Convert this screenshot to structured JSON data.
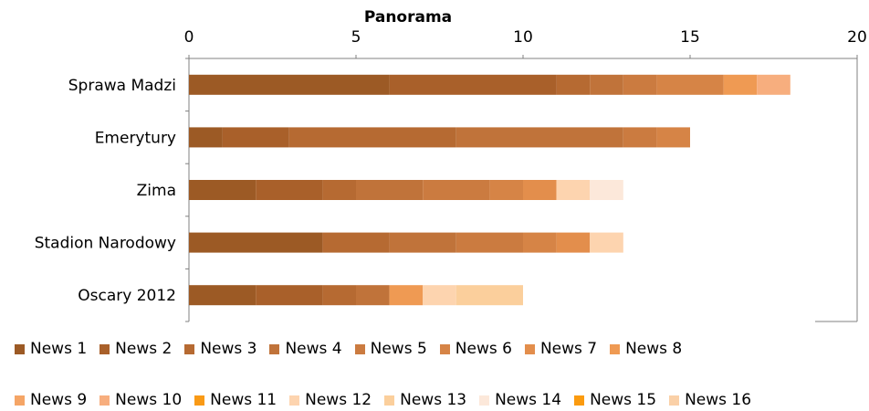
{
  "chart_data": {
    "type": "bar",
    "orientation": "horizontal",
    "stacked": true,
    "title": "Panorama",
    "xlim": [
      0,
      20
    ],
    "x_ticks": [
      "0",
      "5",
      "10",
      "15",
      "20"
    ],
    "axis_position": "top",
    "categories": [
      "Sprawa Madzi",
      "Emerytury",
      "Zima",
      "Stadion Narodowy",
      "Oscary 2012"
    ],
    "series": [
      {
        "name": "News 1",
        "color": "#9C5A25",
        "values": [
          6,
          1,
          2,
          4,
          2
        ]
      },
      {
        "name": "News 2",
        "color": "#A9602A",
        "values": [
          5,
          2,
          2,
          0,
          2
        ]
      },
      {
        "name": "News 3",
        "color": "#B66A32",
        "values": [
          1,
          5,
          1,
          2,
          1
        ]
      },
      {
        "name": "News 4",
        "color": "#C0733A",
        "values": [
          1,
          5,
          2,
          2,
          1
        ]
      },
      {
        "name": "News 5",
        "color": "#CB7B40",
        "values": [
          1,
          1,
          2,
          2,
          0
        ]
      },
      {
        "name": "News 6",
        "color": "#D68446",
        "values": [
          2,
          1,
          1,
          1,
          0
        ]
      },
      {
        "name": "News 7",
        "color": "#E38E4C",
        "values": [
          0,
          0,
          1,
          1,
          0
        ]
      },
      {
        "name": "News 8",
        "color": "#EF9A53",
        "values": [
          1,
          0,
          0,
          0,
          1
        ]
      },
      {
        "name": "News 9",
        "color": "#F5A566",
        "values": [
          0,
          0,
          0,
          0,
          0
        ]
      },
      {
        "name": "News 10",
        "color": "#F7AE7E",
        "values": [
          1,
          0,
          0,
          0,
          0
        ]
      },
      {
        "name": "News 11",
        "color": "#F99A16",
        "values": [
          0,
          0,
          0,
          0,
          0
        ]
      },
      {
        "name": "News 12",
        "color": "#FDD4AF",
        "values": [
          0,
          0,
          1,
          1,
          1
        ]
      },
      {
        "name": "News 13",
        "color": "#FBCF9C",
        "values": [
          0,
          0,
          0,
          0,
          2
        ]
      },
      {
        "name": "News 14",
        "color": "#FCE8DA",
        "values": [
          0,
          0,
          1,
          0,
          0
        ]
      },
      {
        "name": "News 15",
        "color": "#FB9B0F",
        "values": [
          0,
          0,
          0,
          0,
          0
        ]
      },
      {
        "name": "News 16",
        "color": "#FAD0A7",
        "values": [
          0,
          0,
          0,
          0,
          0
        ]
      }
    ],
    "legend": "bottom",
    "grid": false
  }
}
